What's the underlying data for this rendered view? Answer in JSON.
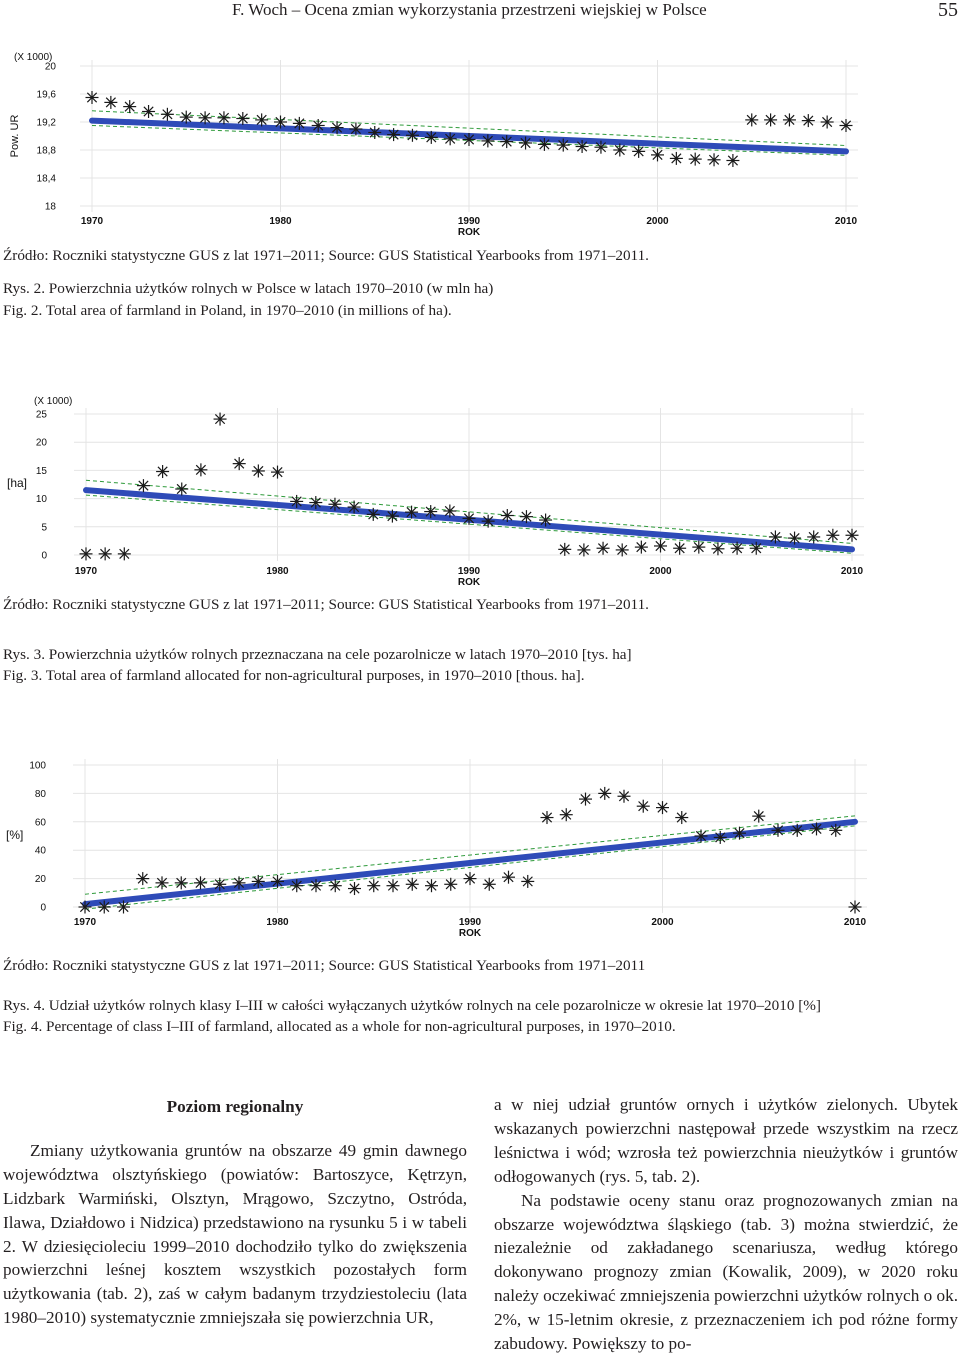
{
  "header": {
    "running_title": "F. Woch – Ocena zmian wykorzystania przestrzeni wiejskiej w Polsce",
    "page_number": "55"
  },
  "figures": [
    {
      "source": "Źródło: Roczniki statystyczne GUS z lat 1971–2011; Source: GUS Statistical Yearbooks from 1971–2011.",
      "caption_pl": "Rys. 2. Powierzchnia użytków rolnych w Polsce w latach 1970–2010 (w mln ha)",
      "caption_en": "Fig. 2. Total area of farmland in Poland, in 1970–2010 (in millions of ha)."
    },
    {
      "source": "Źródło: Roczniki statystyczne GUS z lat 1971–2011; Source: GUS Statistical Yearbooks from 1971–2011.",
      "caption_pl": "Rys. 3. Powierzchnia użytków rolnych przeznaczana na cele pozarolnicze w latach 1970–2010 [tys. ha]",
      "caption_en": "Fig. 3. Total area of farmland allocated for non-agricultural purposes, in 1970–2010 [thous. ha]."
    },
    {
      "source": "Źródło: Roczniki statystyczne GUS z lat 1971–2011; Source: GUS Statistical Yearbooks from 1971–2011",
      "caption_pl": "Rys. 4. Udział użytków rolnych klasy I–III w całości wyłączanych użytków rolnych na cele pozarolnicze w okresie lat 1970–2010 [%]",
      "caption_en": "Fig. 4. Percentage of class I–III of farmland, allocated as a whole for non-agricultural purposes, in 1970–2010."
    }
  ],
  "chart_data": [
    {
      "type": "scatter",
      "title": "",
      "multiplier": "(X 1000)",
      "ylabel": "Pow. UR",
      "xlabel": "ROK",
      "x_ticks": [
        "1970",
        "1980",
        "1990",
        "2000",
        "2010"
      ],
      "y_ticks": [
        "20",
        "19,6",
        "19,2",
        "18,8",
        "18,4",
        "18"
      ],
      "xlim": [
        1970,
        2010
      ],
      "ylim": [
        18,
        20
      ],
      "series": [
        {
          "kind": "points",
          "x": [
            1970,
            1971,
            1972,
            1973,
            1974,
            1975,
            1976,
            1977,
            1978,
            1979,
            1980,
            1981,
            1982,
            1983,
            1984,
            1985,
            1986,
            1987,
            1988,
            1989,
            1990,
            1991,
            1992,
            1993,
            1994,
            1995,
            1996,
            1997,
            1998,
            1999,
            2000,
            2001,
            2002,
            2003,
            2004,
            2005,
            2006,
            2007,
            2008,
            2009,
            2010
          ],
          "y": [
            19.55,
            19.48,
            19.42,
            19.35,
            19.31,
            19.27,
            19.26,
            19.26,
            19.25,
            19.23,
            19.2,
            19.18,
            19.15,
            19.12,
            19.1,
            19.05,
            19.02,
            19.01,
            18.98,
            18.96,
            18.95,
            18.93,
            18.92,
            18.9,
            18.88,
            18.87,
            18.85,
            18.84,
            18.8,
            18.78,
            18.73,
            18.68,
            18.67,
            18.66,
            18.65,
            19.23,
            19.23,
            19.23,
            19.22,
            19.2,
            19.15
          ]
        },
        {
          "kind": "trend",
          "x": [
            1970,
            2010
          ],
          "y": [
            19.22,
            18.78
          ]
        }
      ]
    },
    {
      "type": "scatter",
      "title": "",
      "multiplier": "(X 1000)",
      "ylabel": "[ha]",
      "xlabel": "ROK",
      "x_ticks": [
        "1970",
        "1980",
        "1990",
        "2000",
        "2010"
      ],
      "y_ticks": [
        "25",
        "20",
        "15",
        "10",
        "5",
        "0"
      ],
      "xlim": [
        1970,
        2010
      ],
      "ylim": [
        0,
        25
      ],
      "series": [
        {
          "kind": "points",
          "x": [
            1970,
            1971,
            1972,
            1973,
            1974,
            1975,
            1976,
            1977,
            1978,
            1979,
            1980,
            1981,
            1982,
            1983,
            1984,
            1985,
            1986,
            1987,
            1988,
            1989,
            1990,
            1991,
            1992,
            1993,
            1994,
            1995,
            1996,
            1997,
            1998,
            1999,
            2000,
            2001,
            2002,
            2003,
            2004,
            2005,
            2006,
            2007,
            2008,
            2009,
            2010
          ],
          "y": [
            0.2,
            0.2,
            0.2,
            12.3,
            14.8,
            11.7,
            15.1,
            24.1,
            16.2,
            14.9,
            14.7,
            9.5,
            9.3,
            9.0,
            8.5,
            7.2,
            6.9,
            7.6,
            7.7,
            7.8,
            6.5,
            6.0,
            7.0,
            6.8,
            6.2,
            1.0,
            0.9,
            1.2,
            0.9,
            1.4,
            1.6,
            1.2,
            1.4,
            1.1,
            1.2,
            1.2,
            3.2,
            3.0,
            3.2,
            3.5,
            3.5
          ]
        },
        {
          "kind": "trend",
          "x": [
            1970,
            2010
          ],
          "y": [
            11.5,
            1.0
          ]
        }
      ]
    },
    {
      "type": "scatter",
      "title": "",
      "ylabel": "[%]",
      "xlabel": "ROK",
      "x_ticks": [
        "1970",
        "1980",
        "1990",
        "2000",
        "2010"
      ],
      "y_ticks": [
        "100",
        "80",
        "60",
        "40",
        "20",
        "0"
      ],
      "xlim": [
        1970,
        2010
      ],
      "ylim": [
        0,
        100
      ],
      "series": [
        {
          "kind": "points",
          "x": [
            1970,
            1971,
            1972,
            1973,
            1974,
            1975,
            1976,
            1977,
            1978,
            1979,
            1980,
            1981,
            1982,
            1983,
            1984,
            1985,
            1986,
            1987,
            1988,
            1989,
            1990,
            1991,
            1992,
            1993,
            1994,
            1995,
            1996,
            1997,
            1998,
            1999,
            2000,
            2001,
            2002,
            2003,
            2004,
            2005,
            2006,
            2007,
            2008,
            2009,
            2010
          ],
          "y": [
            0,
            0,
            0,
            20,
            17,
            17,
            17,
            16,
            17,
            18,
            18,
            15,
            15,
            15,
            13,
            15,
            15,
            16,
            15,
            16,
            20,
            16,
            21,
            18,
            63,
            65,
            76,
            80,
            78,
            71,
            70,
            63,
            50,
            49,
            52,
            64,
            54,
            54,
            55,
            54,
            0
          ]
        },
        {
          "kind": "trend",
          "x": [
            1970,
            2010
          ],
          "y": [
            2,
            60
          ]
        }
      ]
    }
  ],
  "section_heading": "Poziom regionalny",
  "body_left": "Zmiany użytkowania gruntów na obszarze 49 gmin dawnego województwa olsztyńskiego (powiatów: Bartoszyce, Kętrzyn, Lidzbark Warmiński, Olsztyn, Mrągowo, Szczytno, Ostróda, Ilawa, Działdowo i Nidzica) przedstawiono na rysunku 5 i w tabeli 2. W dziesięcioleciu 1999–2010 dochodziło tylko do zwiększenia powierzchni leśnej kosztem wszystkich pozostałych form użytkowania (tab. 2), zaś w całym badanym trzydziestoleciu (lata 1980–2010) systematycznie zmniejszała się powierzchnia UR,",
  "body_right_1": "a w niej udział gruntów ornych i użytków zielonych. Ubytek wskazanych powierzchni następował przede wszystkim na rzecz leśnictwa i wód; wzrosła też powierzchnia nieużytków i gruntów odłogowanych (rys. 5, tab. 2).",
  "body_right_2": "Na podstawie oceny stanu oraz prognozowanych zmian na obszarze województwa śląskiego (tab. 3) można stwierdzić, że niezależnie od zakładanego scenariusza, według którego dokonywano prognozy zmian (Kowalik, 2009), w 2020 roku należy oczekiwać zmniejszenia powierzchni użytków rolnych o ok. 2%, w 15-letnim okresie, z przeznaczeniem ich pod różne formy zabudowy. Powiększy to po-"
}
